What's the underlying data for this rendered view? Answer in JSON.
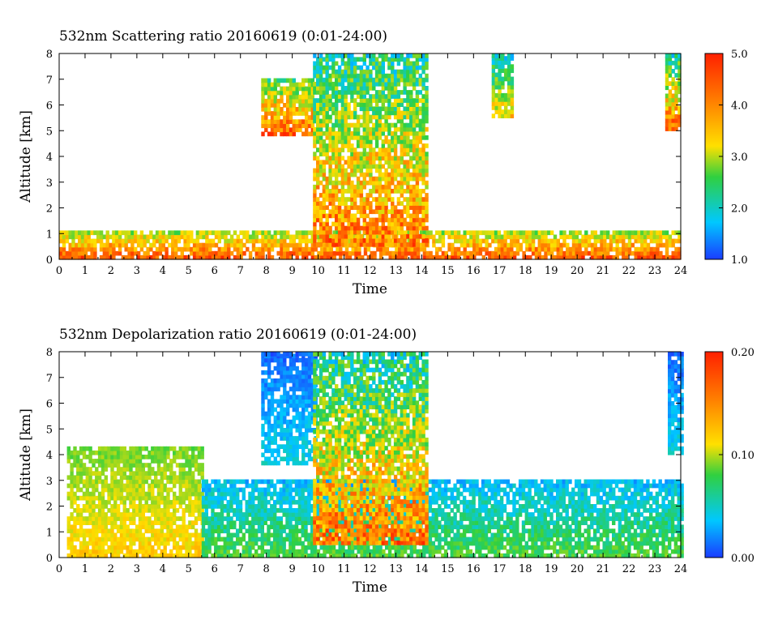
{
  "chart_data": [
    {
      "type": "heatmap",
      "title": "532nm Scattering ratio   20160619 (0:01-24:00)",
      "xlabel": "Time",
      "ylabel": "Altitude [km]",
      "xlim": [
        0,
        24
      ],
      "ylim": [
        0,
        8
      ],
      "x_ticks": [
        "0",
        "1",
        "2",
        "3",
        "4",
        "5",
        "6",
        "7",
        "8",
        "9",
        "10",
        "11",
        "12",
        "13",
        "14",
        "15",
        "16",
        "17",
        "18",
        "19",
        "20",
        "21",
        "22",
        "23",
        "24"
      ],
      "y_ticks": [
        "0",
        "1",
        "2",
        "3",
        "4",
        "5",
        "6",
        "7",
        "8"
      ],
      "colorbar": {
        "min": 1.0,
        "max": 5.0,
        "ticks": [
          "1.0",
          "2.0",
          "3.0",
          "4.0",
          "5.0"
        ],
        "colors": [
          "#1a3cff",
          "#00c8ff",
          "#30d040",
          "#ffe000",
          "#ff7a00",
          "#ff2000"
        ]
      },
      "features": [
        {
          "desc": "boundary layer",
          "time": [
            0,
            24
          ],
          "alt": [
            0,
            1.0
          ],
          "value_range": [
            2.5,
            5.0
          ]
        },
        {
          "desc": "cloud layer",
          "time": [
            7.8,
            9.8
          ],
          "alt": [
            4.8,
            7.0
          ],
          "value_range": [
            2.0,
            5.0
          ]
        },
        {
          "desc": "deep cloud",
          "time": [
            9.8,
            14.2
          ],
          "alt": [
            0.5,
            8.0
          ],
          "value_range": [
            1.5,
            5.0
          ]
        },
        {
          "desc": "cloud",
          "time": [
            16.7,
            17.5
          ],
          "alt": [
            5.5,
            8.0
          ],
          "value_range": [
            1.5,
            4.0
          ]
        },
        {
          "desc": "cloud",
          "time": [
            23.4,
            24
          ],
          "alt": [
            5.0,
            8.0
          ],
          "value_range": [
            1.5,
            5.0
          ]
        }
      ]
    },
    {
      "type": "heatmap",
      "title": "532nm Depolarization ratio   20160619 (0:01-24:00)",
      "xlabel": "Time",
      "ylabel": "Altitude [km]",
      "xlim": [
        0,
        24
      ],
      "ylim": [
        0,
        8
      ],
      "x_ticks": [
        "0",
        "1",
        "2",
        "3",
        "4",
        "5",
        "6",
        "7",
        "8",
        "9",
        "10",
        "11",
        "12",
        "13",
        "14",
        "15",
        "16",
        "17",
        "18",
        "19",
        "20",
        "21",
        "22",
        "23",
        "24"
      ],
      "y_ticks": [
        "0",
        "1",
        "2",
        "3",
        "4",
        "5",
        "6",
        "7",
        "8"
      ],
      "colorbar": {
        "min": 0.0,
        "max": 0.2,
        "ticks": [
          "0.00",
          "0.10",
          "0.20"
        ],
        "colors": [
          "#1a3cff",
          "#00c8ff",
          "#30d040",
          "#ffe000",
          "#ff7a00",
          "#ff2000"
        ]
      },
      "features": [
        {
          "desc": "dust layer",
          "time": [
            0.3,
            5.5
          ],
          "alt": [
            0,
            4.2
          ],
          "value_range": [
            0.08,
            0.14
          ]
        },
        {
          "desc": "low-depol boundary layer",
          "time": [
            5.5,
            24
          ],
          "alt": [
            0,
            3.0
          ],
          "value_range": [
            0.02,
            0.1
          ]
        },
        {
          "desc": "cloud",
          "time": [
            7.8,
            9.9
          ],
          "alt": [
            3.6,
            8.0
          ],
          "value_range": [
            0.0,
            0.06
          ]
        },
        {
          "desc": "deep cloud",
          "time": [
            9.8,
            14.2
          ],
          "alt": [
            0.5,
            8.0
          ],
          "value_range": [
            0.02,
            0.2
          ]
        },
        {
          "desc": "cloud",
          "time": [
            23.5,
            24
          ],
          "alt": [
            4.0,
            8.0
          ],
          "value_range": [
            0.0,
            0.06
          ]
        }
      ]
    }
  ]
}
